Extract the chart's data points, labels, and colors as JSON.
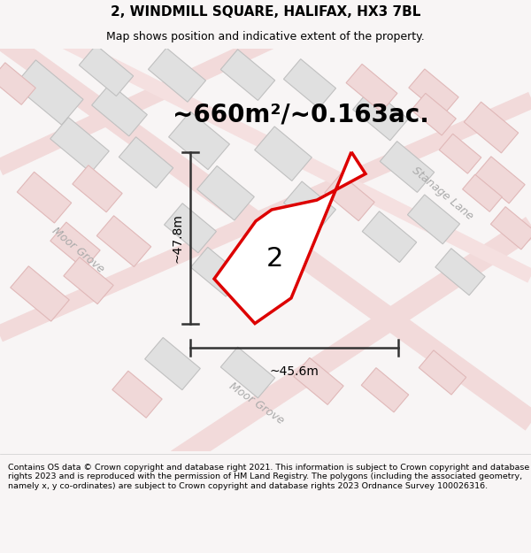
{
  "title": "2, WINDMILL SQUARE, HALIFAX, HX3 7BL",
  "subtitle": "Map shows position and indicative extent of the property.",
  "area_label": "~660m²/~0.163ac.",
  "plot_number": "2",
  "width_label": "~45.6m",
  "height_label": "~47.8m",
  "footer": "Contains OS data © Crown copyright and database right 2021. This information is subject to Crown copyright and database rights 2023 and is reproduced with the permission of HM Land Registry. The polygons (including the associated geometry, namely x, y co-ordinates) are subject to Crown copyright and database rights 2023 Ordnance Survey 100026316.",
  "road_label_stanage": "Stanage Lane",
  "road_label_moor1": "Moor Grove",
  "road_label_moor2": "Moor Grove",
  "red_color": "#dd0000",
  "title_fontsize": 11,
  "subtitle_fontsize": 9,
  "area_fontsize": 20,
  "plot_num_fontsize": 22,
  "measure_fontsize": 10,
  "road_fontsize": 9,
  "footer_fontsize": 6.8,
  "map_bg": "#ffffff",
  "fig_bg": "#f8f5f5",
  "bldg_gray": "#e0e0e0",
  "bldg_gray_ec": "#c0c0c0",
  "bldg_pink": "#f0d8d8",
  "bldg_pink_ec": "#e0b8b8",
  "road_color": "#f0d0d0",
  "road_outline": "#e8c0c0"
}
